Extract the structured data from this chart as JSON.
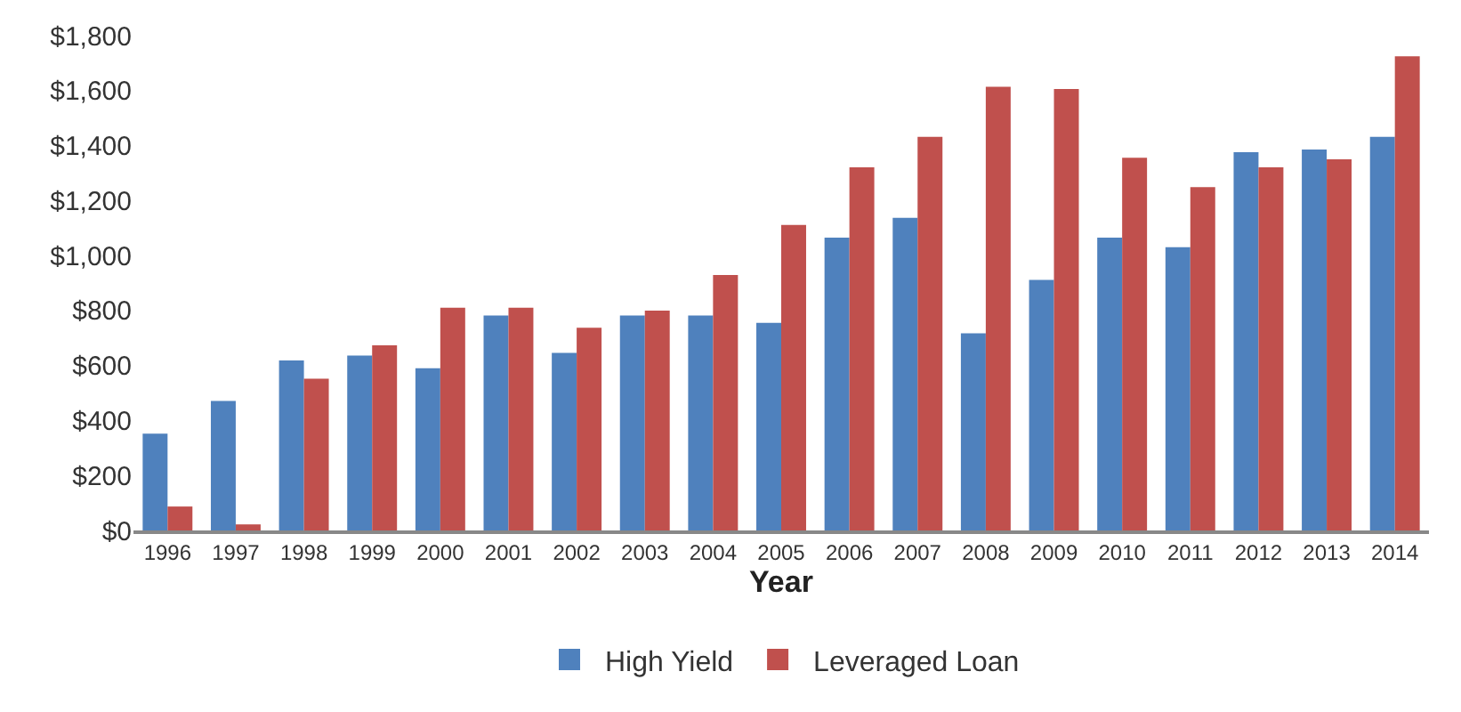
{
  "chart_data": {
    "type": "bar",
    "xlabel": "Year",
    "categories": [
      "1996",
      "1997",
      "1998",
      "1999",
      "2000",
      "2001",
      "2002",
      "2003",
      "2004",
      "2005",
      "2006",
      "2007",
      "2008",
      "2009",
      "2010",
      "2011",
      "2012",
      "2013",
      "2014"
    ],
    "series": [
      {
        "name": "High Yield",
        "color": "#4f81bd",
        "values": [
          352,
          471,
          618,
          636,
          590,
          782,
          646,
          782,
          782,
          755,
          1065,
          1137,
          717,
          911,
          1065,
          1030,
          1376,
          1386,
          1432
        ]
      },
      {
        "name": "Leveraged Loan",
        "color": "#c0504d",
        "values": [
          87,
          22,
          552,
          673,
          810,
          810,
          737,
          800,
          929,
          1111,
          1321,
          1432,
          1614,
          1606,
          1356,
          1249,
          1321,
          1350,
          1725
        ]
      }
    ],
    "ylim": [
      0,
      1800
    ],
    "yticks": [
      {
        "value": 0,
        "label": "$0"
      },
      {
        "value": 200,
        "label": "$200"
      },
      {
        "value": 400,
        "label": "$400"
      },
      {
        "value": 600,
        "label": "$600"
      },
      {
        "value": 800,
        "label": "$800"
      },
      {
        "value": 1000,
        "label": "$1,000"
      },
      {
        "value": 1200,
        "label": "$1,200"
      },
      {
        "value": 1400,
        "label": "$1,400"
      },
      {
        "value": 1600,
        "label": "$1,600"
      },
      {
        "value": 1800,
        "label": "$1,800"
      }
    ],
    "legend": "bottom"
  }
}
